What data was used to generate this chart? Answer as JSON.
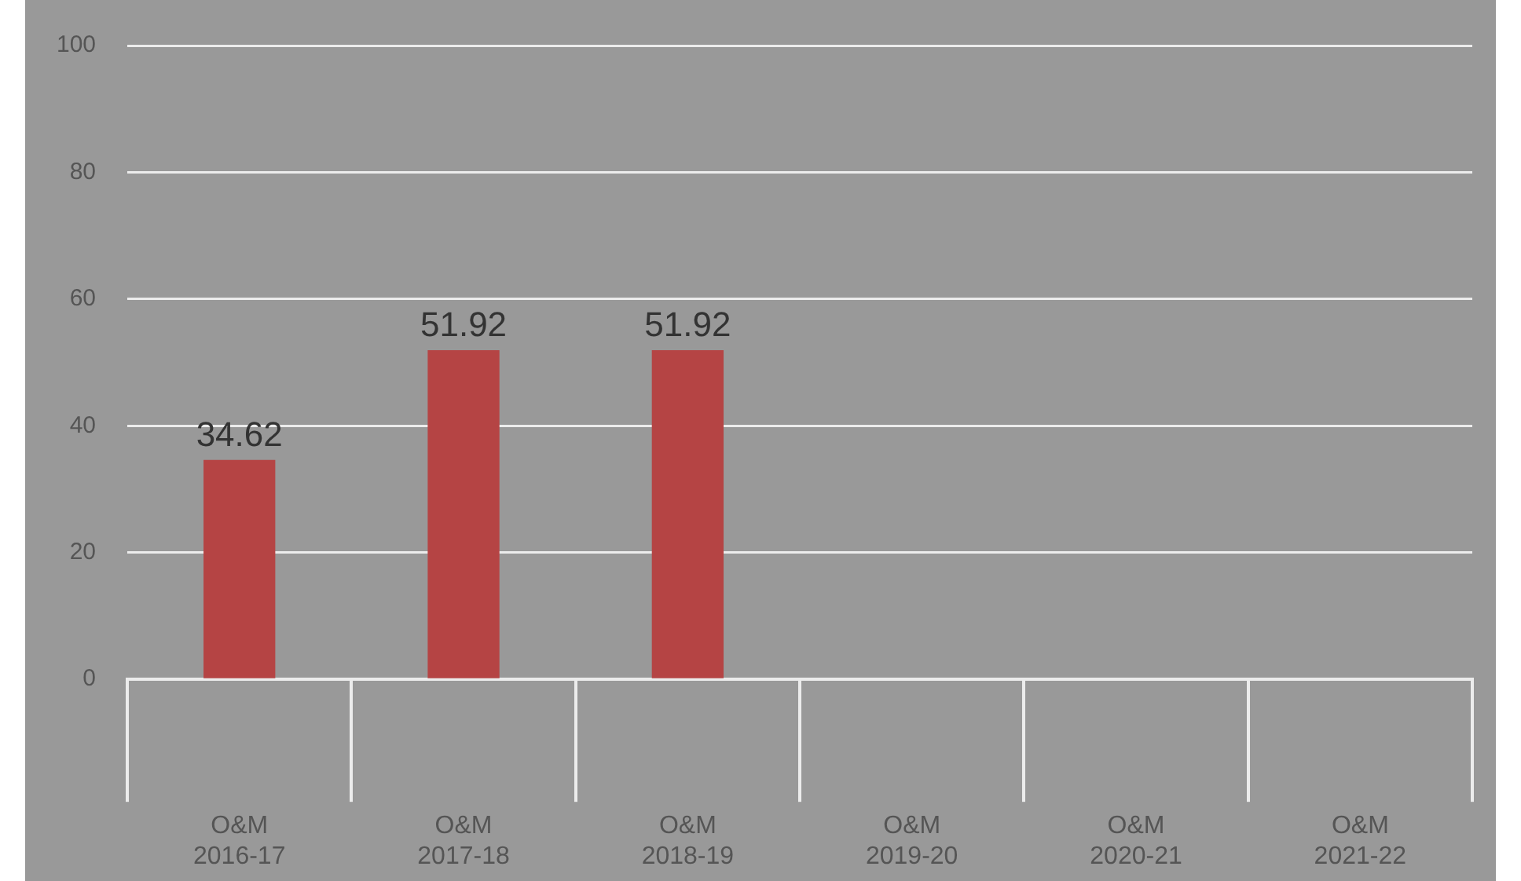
{
  "chart_data": {
    "type": "bar",
    "categories": [
      "O&M\n2016-17",
      "O&M\n2017-18",
      "O&M\n2018-19",
      "O&M\n2019-20",
      "O&M\n2020-21",
      "O&M\n2021-22"
    ],
    "values": [
      34.62,
      51.92,
      51.92,
      null,
      null,
      null
    ],
    "color": "#b54444",
    "ylim": [
      0,
      100
    ],
    "yticks": [
      0,
      20,
      40,
      60,
      80,
      100
    ],
    "grid": "y",
    "data_labels": true,
    "legend": false
  }
}
